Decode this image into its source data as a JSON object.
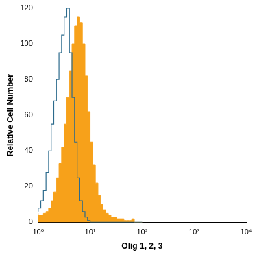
{
  "chart_data": {
    "type": "histogram",
    "x_label": "Olig 1, 2, 3",
    "y_label": "Relative Cell Number",
    "log": "x",
    "grid": false,
    "bins": [
      1,
      1.122,
      1.259,
      1.413,
      1.585,
      1.778,
      1.995,
      2.239,
      2.512,
      2.818,
      3.162,
      3.548,
      3.981,
      4.467,
      5.012,
      5.623,
      6.31,
      7.079,
      7.943,
      8.913,
      10,
      11.22,
      12.59,
      14.13,
      15.85,
      17.78,
      19.95,
      22.39,
      25.12,
      28.18,
      31.62,
      35.48,
      39.81,
      44.67,
      50.12,
      56.23,
      63.1,
      70.79,
      79.43,
      89.13,
      100
    ],
    "series": [
      {
        "type": "area",
        "color": "#f7a11a",
        "values": [
          5,
          4,
          4,
          5,
          6,
          8,
          12,
          17,
          25,
          33,
          42,
          55,
          70,
          85,
          100,
          110,
          115,
          112,
          100,
          82,
          62,
          45,
          32,
          22,
          15,
          10,
          7,
          5,
          4,
          3,
          3,
          2,
          2,
          2,
          1,
          1,
          1,
          2,
          0,
          0
        ]
      },
      {
        "type": "line",
        "color": "#2b6a8c",
        "values": [
          6,
          8,
          12,
          18,
          28,
          40,
          55,
          68,
          80,
          95,
          105,
          115,
          120,
          95,
          70,
          45,
          25,
          12,
          6,
          3,
          1,
          0,
          0,
          0,
          0,
          0,
          0,
          0,
          0,
          0,
          0,
          0,
          0,
          0,
          0,
          0,
          0,
          0,
          0,
          0
        ]
      }
    ],
    "xlim": [
      1,
      10000
    ],
    "xticks": [
      {
        "value": 1,
        "label": "10⁰"
      },
      {
        "value": 10,
        "label": "10¹"
      },
      {
        "value": 100,
        "label": "10²"
      },
      {
        "value": 1000,
        "label": "10³"
      },
      {
        "value": 10000,
        "label": "10⁴"
      }
    ],
    "ylim": [
      0,
      120
    ],
    "yticks": [
      0,
      20,
      40,
      60,
      80,
      100,
      120
    ]
  }
}
